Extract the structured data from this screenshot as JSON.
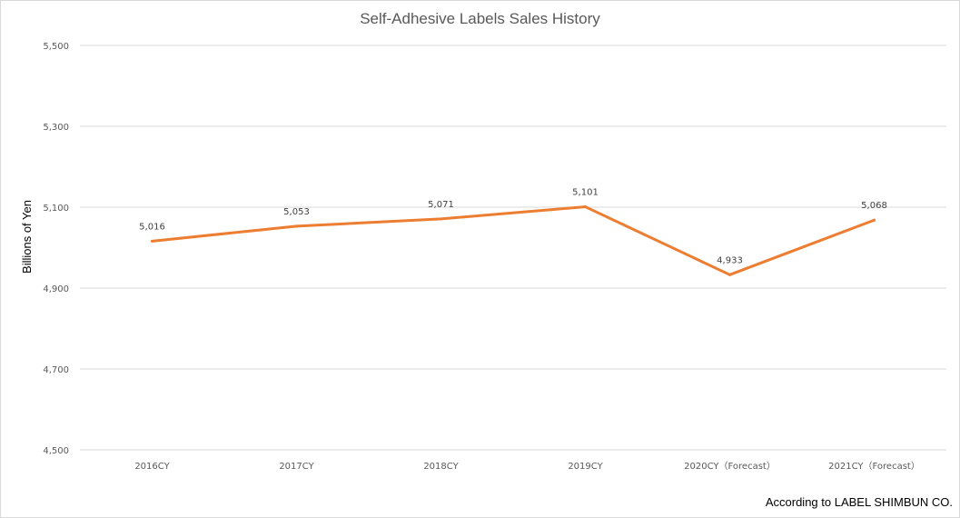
{
  "chart_data": {
    "type": "line",
    "title": "Self-Adhesive Labels Sales History",
    "ylabel": "Billions of Yen",
    "xlabel": "",
    "categories": [
      "2016CY",
      "2017CY",
      "2018CY",
      "2019CY",
      "2020CY（Forecast）",
      "2021CY（Forecast）"
    ],
    "series": [
      {
        "values": [
          5016,
          5053,
          5071,
          5101,
          4933,
          5068
        ],
        "labels": [
          "5,016",
          "5,053",
          "5,071",
          "5,101",
          "4,933",
          "5,068"
        ]
      }
    ],
    "yticks": [
      "4,500",
      "4,700",
      "4,900",
      "5,100",
      "5,300",
      "5,500"
    ],
    "ylim": [
      4500,
      5500
    ],
    "grid": true,
    "legend": "none",
    "line_color": "#ED7D31"
  },
  "source": "According to LABEL SHIMBUN CO."
}
